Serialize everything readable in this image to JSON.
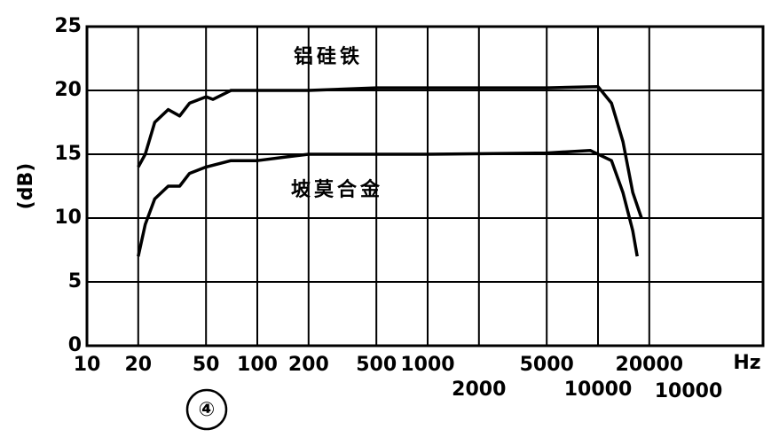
{
  "chart_data": {
    "type": "line",
    "ylabel": "(dB)",
    "xlabel": "Hz",
    "xscale": "log",
    "xlim": [
      10,
      100000
    ],
    "ylim": [
      0,
      25
    ],
    "xticks": [
      10,
      20,
      50,
      100,
      200,
      500,
      1000,
      2000,
      5000,
      10000,
      20000
    ],
    "yticks": [
      0,
      5,
      10,
      15,
      20,
      25
    ],
    "grid": true,
    "series": [
      {
        "name": "铝硅铁",
        "color": "#000000",
        "x": [
          20,
          22,
          25,
          30,
          35,
          40,
          50,
          55,
          70,
          100,
          200,
          500,
          1000,
          5000,
          10000,
          12000,
          14000,
          16000,
          18000
        ],
        "values": [
          14,
          15,
          17.5,
          18.5,
          18,
          19,
          19.5,
          19.3,
          20,
          20,
          20,
          20.2,
          20.2,
          20.2,
          20.3,
          19,
          16,
          12,
          10
        ]
      },
      {
        "name": "坡莫合金",
        "color": "#000000",
        "x": [
          20,
          22,
          25,
          30,
          35,
          40,
          50,
          70,
          100,
          150,
          200,
          1000,
          5000,
          9000,
          12000,
          14000,
          16000,
          17000
        ],
        "values": [
          7,
          9.5,
          11.5,
          12.5,
          12.5,
          13.5,
          14,
          14.5,
          14.5,
          14.8,
          15,
          15,
          15.1,
          15.3,
          14.5,
          12,
          9,
          7
        ]
      }
    ],
    "annotations": [
      "④",
      "10000"
    ]
  }
}
